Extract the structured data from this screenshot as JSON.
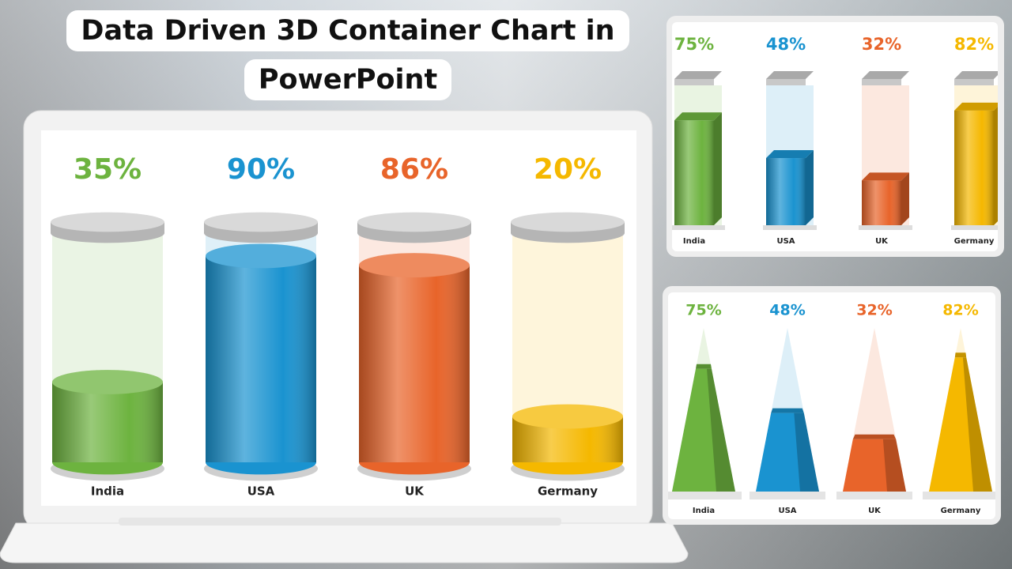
{
  "title": "Data Driven 3D Container Chart in PowerPoint",
  "chart_data": [
    {
      "type": "cylinder",
      "categories": [
        "India",
        "USA",
        "UK",
        "Germany"
      ],
      "values": [
        35,
        90,
        86,
        20
      ],
      "value_labels": [
        "35%",
        "90%",
        "86%",
        "20%"
      ],
      "colors": [
        "#6db33f",
        "#1a93d0",
        "#e8642a",
        "#f5b800"
      ],
      "ylim": [
        0,
        100
      ]
    },
    {
      "type": "box3d",
      "categories": [
        "India",
        "USA",
        "UK",
        "Germany"
      ],
      "values": [
        75,
        48,
        32,
        82
      ],
      "value_labels": [
        "75%",
        "48%",
        "32%",
        "82%"
      ],
      "colors": [
        "#6db33f",
        "#1a93d0",
        "#e8642a",
        "#f5b800"
      ],
      "ylim": [
        0,
        100
      ]
    },
    {
      "type": "pyramid",
      "categories": [
        "India",
        "USA",
        "UK",
        "Germany"
      ],
      "values": [
        75,
        48,
        32,
        82
      ],
      "value_labels": [
        "75%",
        "48%",
        "32%",
        "82%"
      ],
      "colors": [
        "#6db33f",
        "#1a93d0",
        "#e8642a",
        "#f5b800"
      ],
      "ylim": [
        0,
        100
      ]
    }
  ]
}
